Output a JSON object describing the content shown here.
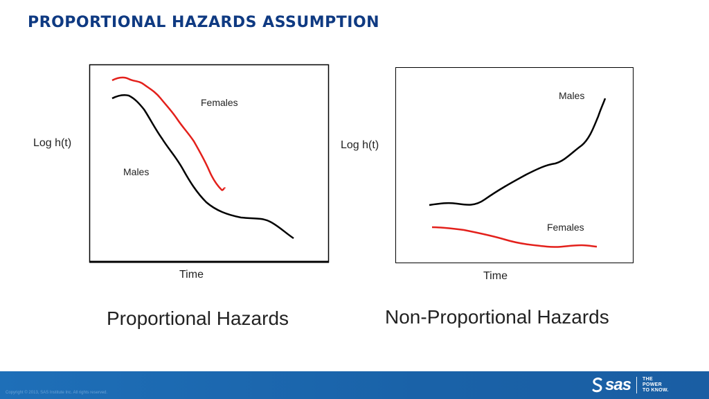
{
  "title": "PROPORTIONAL HAZARDS ASSUMPTION",
  "left_panel": {
    "ylabel": "Log h(t)",
    "xlabel": "Time",
    "caption": "Proportional Hazards",
    "label_females": "Females",
    "label_males": "Males"
  },
  "right_panel": {
    "ylabel": "Log h(t)",
    "xlabel": "Time",
    "caption": "Non-Proportional Hazards",
    "label_males": "Males",
    "label_females": "Females"
  },
  "colors": {
    "title": "#0f3a82",
    "females_curve": "#e3201b",
    "males_curve": "#000000",
    "footer": "#1e6fb8"
  },
  "footer": {
    "copyright": "Copyright © 2013, SAS Institute Inc. All rights reserved.",
    "logo_text": "sas",
    "tagline_lines": [
      "THE",
      "POWER",
      "TO KNOW."
    ]
  }
}
